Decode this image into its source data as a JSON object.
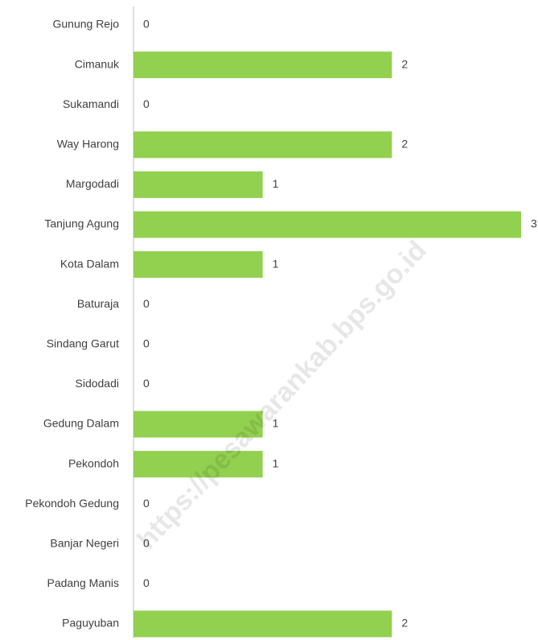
{
  "chart_data": {
    "type": "barh",
    "categories": [
      "Gunung Rejo",
      "Cimanuk",
      "Sukamandi",
      "Way Harong",
      "Margodadi",
      "Tanjung Agung",
      "Kota Dalam",
      "Baturaja",
      "Sindang Garut",
      "Sidodadi",
      "Gedung Dalam",
      "Pekondoh",
      "Pekondoh Gedung",
      "Banjar Negeri",
      "Padang Manis",
      "Paguyuban"
    ],
    "values": [
      0,
      2,
      0,
      2,
      1,
      3,
      1,
      0,
      0,
      0,
      1,
      1,
      0,
      0,
      0,
      2
    ],
    "color": "#92d050",
    "xlim": [
      0,
      3
    ],
    "watermark": "https://pesawarankab.bps.go.id"
  }
}
